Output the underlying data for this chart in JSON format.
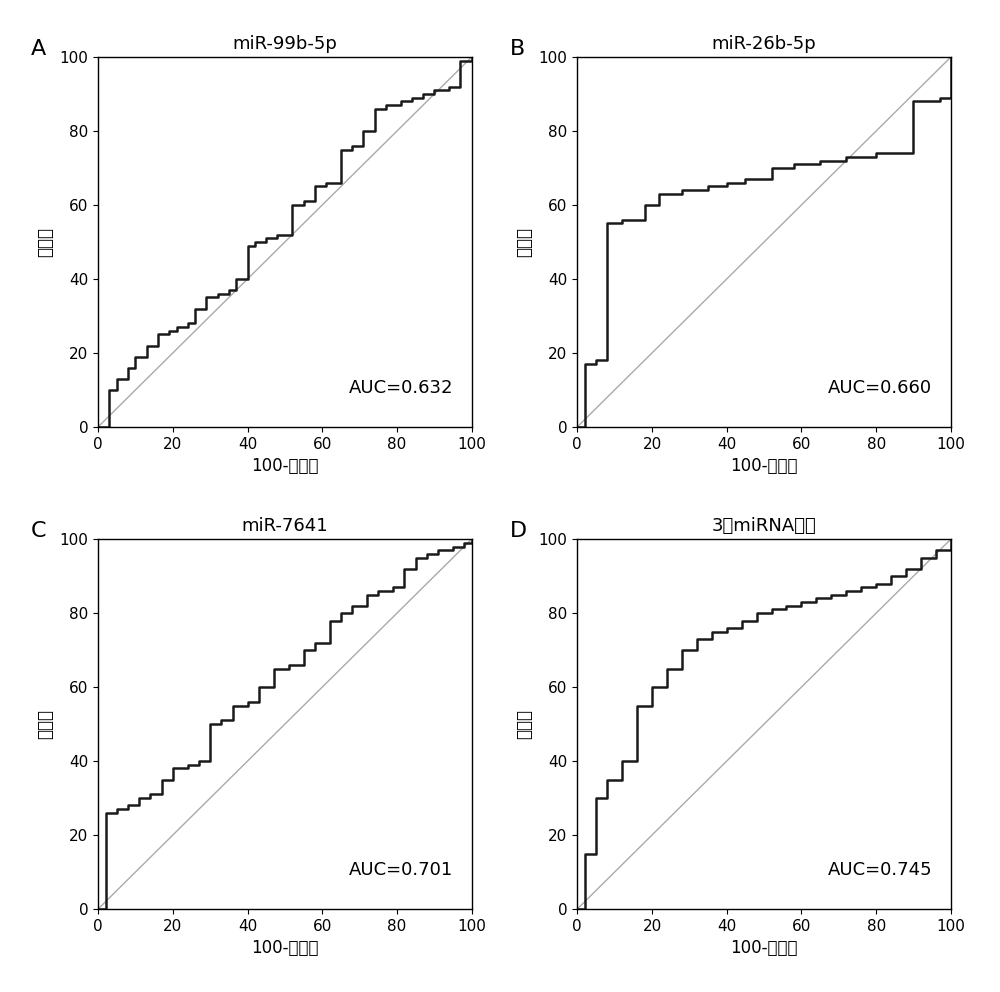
{
  "panels": [
    {
      "label": "A",
      "title": "miR-99b-5p",
      "auc": "AUC=0.632",
      "roc_x": [
        0,
        3,
        5,
        8,
        10,
        13,
        16,
        19,
        21,
        24,
        26,
        29,
        32,
        35,
        37,
        40,
        42,
        45,
        48,
        52,
        55,
        58,
        61,
        65,
        68,
        71,
        74,
        77,
        81,
        84,
        87,
        90,
        94,
        97,
        100
      ],
      "roc_y": [
        0,
        10,
        13,
        16,
        19,
        22,
        25,
        26,
        27,
        28,
        32,
        35,
        36,
        37,
        40,
        49,
        50,
        51,
        52,
        60,
        61,
        65,
        66,
        75,
        76,
        80,
        86,
        87,
        88,
        89,
        90,
        91,
        92,
        99,
        100
      ]
    },
    {
      "label": "B",
      "title": "miR-26b-5p",
      "auc": "AUC=0.660",
      "roc_x": [
        0,
        2,
        5,
        8,
        12,
        18,
        22,
        28,
        35,
        40,
        45,
        52,
        58,
        65,
        72,
        80,
        90,
        97,
        100
      ],
      "roc_y": [
        0,
        17,
        18,
        55,
        56,
        60,
        63,
        64,
        65,
        66,
        67,
        70,
        71,
        72,
        73,
        74,
        88,
        89,
        100
      ]
    },
    {
      "label": "C",
      "title": "miR-7641",
      "auc": "AUC=0.701",
      "roc_x": [
        0,
        2,
        5,
        8,
        11,
        14,
        17,
        20,
        24,
        27,
        30,
        33,
        36,
        40,
        43,
        47,
        51,
        55,
        58,
        62,
        65,
        68,
        72,
        75,
        79,
        82,
        85,
        88,
        91,
        95,
        98,
        100
      ],
      "roc_y": [
        0,
        26,
        27,
        28,
        30,
        31,
        35,
        38,
        39,
        40,
        50,
        51,
        55,
        56,
        60,
        65,
        66,
        70,
        72,
        78,
        80,
        82,
        85,
        86,
        87,
        92,
        95,
        96,
        97,
        98,
        99,
        100
      ]
    },
    {
      "label": "D",
      "title": "3个miRNA联合",
      "auc": "AUC=0.745",
      "roc_x": [
        0,
        2,
        5,
        8,
        12,
        16,
        20,
        24,
        28,
        32,
        36,
        40,
        44,
        48,
        52,
        56,
        60,
        64,
        68,
        72,
        76,
        80,
        84,
        88,
        92,
        96,
        100
      ],
      "roc_y": [
        0,
        15,
        30,
        35,
        40,
        55,
        60,
        65,
        70,
        73,
        75,
        76,
        78,
        80,
        81,
        82,
        83,
        84,
        85,
        86,
        87,
        88,
        90,
        92,
        95,
        97,
        100
      ]
    }
  ],
  "xlabel": "100-特异度",
  "ylabel": "灵敏度",
  "xlim": [
    0,
    100
  ],
  "ylim": [
    0,
    100
  ],
  "xticks": [
    0,
    20,
    40,
    60,
    80,
    100
  ],
  "yticks": [
    0,
    20,
    40,
    60,
    80,
    100
  ],
  "curve_color": "#1a1a1a",
  "diag_color": "#aaaaaa",
  "bg_color": "#ffffff",
  "curve_lw": 1.8,
  "diag_lw": 1.0,
  "auc_fontsize": 13,
  "label_fontsize": 16,
  "title_fontsize": 13,
  "tick_fontsize": 11,
  "axis_label_fontsize": 12
}
